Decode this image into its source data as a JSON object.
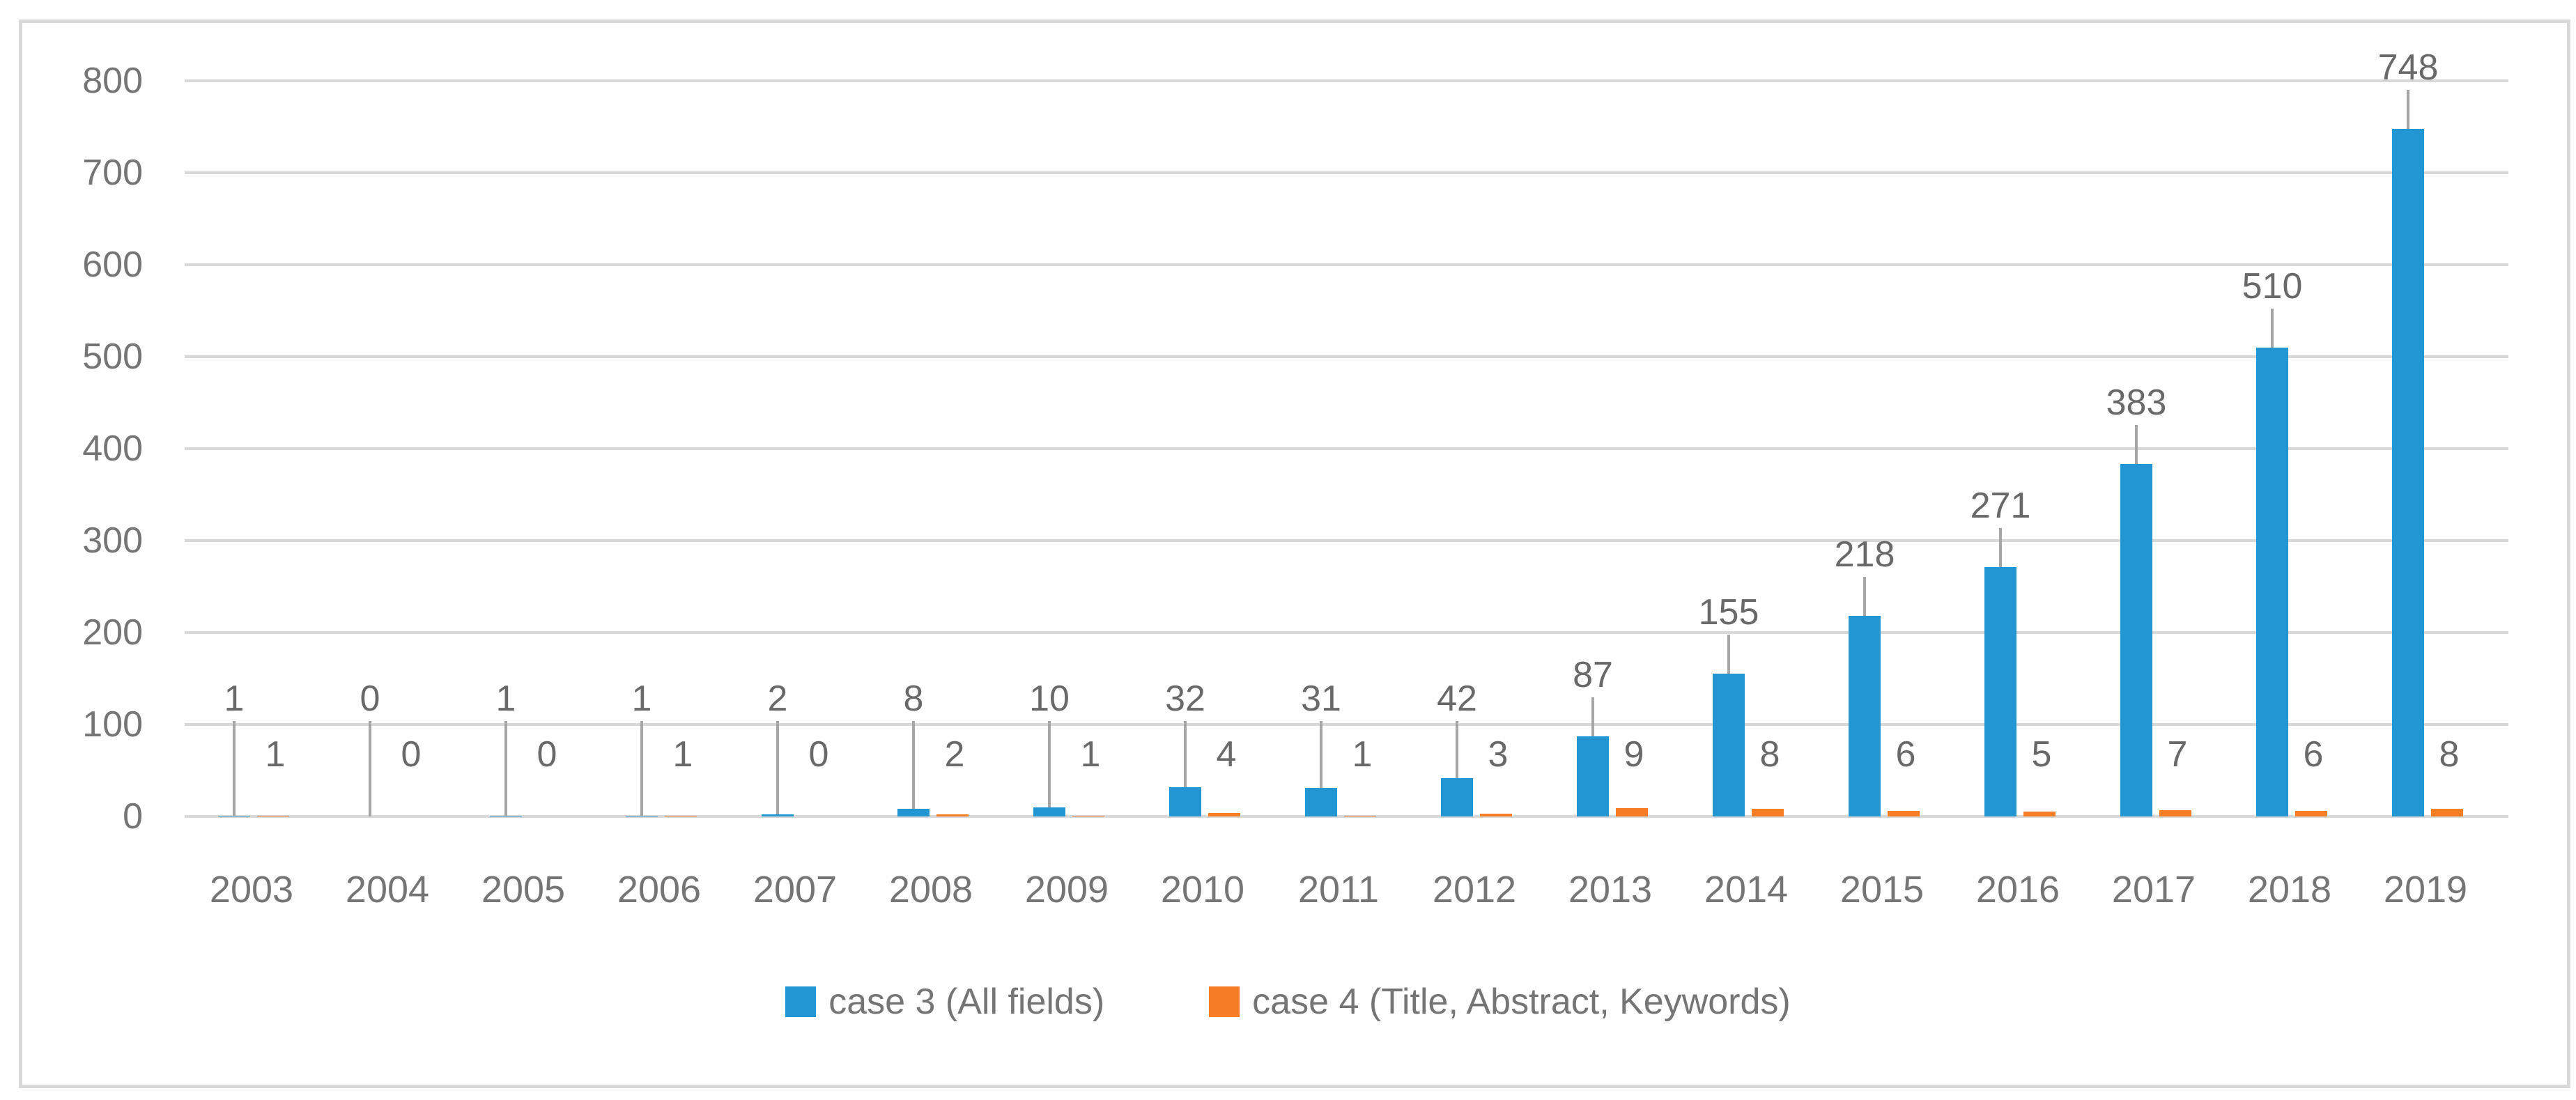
{
  "chart_data": {
    "type": "bar",
    "title": "",
    "xlabel": "",
    "ylabel": "",
    "categories": [
      "2003",
      "2004",
      "2005",
      "2006",
      "2007",
      "2008",
      "2009",
      "2010",
      "2011",
      "2012",
      "2013",
      "2014",
      "2015",
      "2016",
      "2017",
      "2018",
      "2019"
    ],
    "series": [
      {
        "name": "case 3 (All fields)",
        "color": "#2196D3",
        "values": [
          1,
          0,
          1,
          1,
          2,
          8,
          10,
          32,
          31,
          42,
          87,
          155,
          218,
          271,
          383,
          510,
          748
        ]
      },
      {
        "name": "case 4 (Title, Abstract, Keywords)",
        "color": "#F87E26",
        "values": [
          1,
          0,
          0,
          1,
          0,
          2,
          1,
          4,
          1,
          3,
          9,
          8,
          6,
          5,
          7,
          6,
          8
        ]
      }
    ],
    "ylim": [
      0,
      800
    ],
    "yticks": [
      0,
      100,
      200,
      300,
      400,
      500,
      600,
      700,
      800
    ],
    "grid": "horizontal",
    "data_labels": true,
    "leader_lines_on_series_1": true,
    "legend_position": "bottom"
  },
  "style": {
    "grid_color": "#D9D9D9",
    "border_color": "#D9D9D9",
    "axis_text_color": "#757575",
    "data_label_color": "#696969",
    "leader_color": "#A6A6A6",
    "background": "#FFFFFF"
  }
}
